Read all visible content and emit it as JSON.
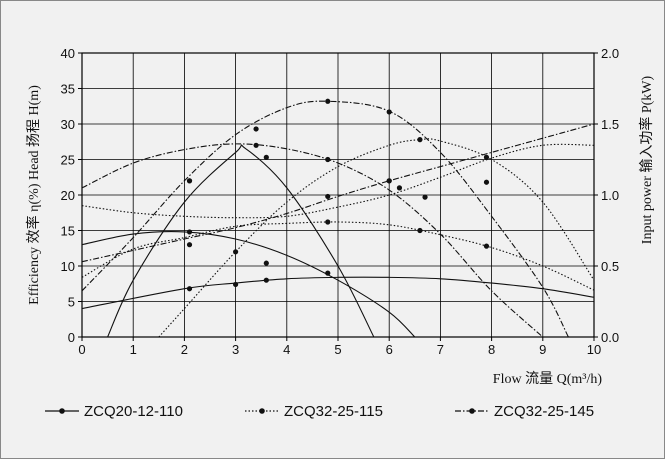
{
  "chart_data": {
    "type": "line",
    "xlabel": "Flow 流量 Q(m³/h)",
    "ylabel_left": "Efficiency 效率 η(%)    Head 扬程 H(m)",
    "ylabel_right": "Input power 输入功率 P(kW)",
    "xlim": [
      0,
      10
    ],
    "ylim_left": [
      0,
      40
    ],
    "ylim_right": [
      0,
      2.0
    ],
    "x_ticks": [
      "0",
      "1",
      "2",
      "3",
      "4",
      "5",
      "6",
      "7",
      "8",
      "9",
      "10"
    ],
    "y_left_ticks": [
      "0",
      "5",
      "10",
      "15",
      "20",
      "25",
      "30",
      "35",
      "40"
    ],
    "y_right_ticks": [
      "0.0",
      "0.5",
      "1.0",
      "1.5",
      "2.0"
    ],
    "grid": true,
    "legend_position": "bottom",
    "series": [
      {
        "name": "ZCQ20-12-110",
        "style": "solid",
        "curves": [
          {
            "kind": "head",
            "axis": "left",
            "points": [
              [
                0,
                13
              ],
              [
                1,
                14.5
              ],
              [
                2,
                14.8
              ],
              [
                3,
                13.8
              ],
              [
                4,
                11.5
              ],
              [
                5,
                8
              ],
              [
                6,
                3.5
              ],
              [
                6.5,
                0
              ]
            ],
            "markers": [
              [
                2.1,
                14.8
              ],
              [
                4.8,
                9
              ]
            ]
          },
          {
            "kind": "efficiency",
            "axis": "left",
            "points": [
              [
                0.5,
                0
              ],
              [
                1,
                8
              ],
              [
                2,
                19
              ],
              [
                3,
                26
              ],
              [
                3.2,
                26.5
              ],
              [
                4,
                21
              ],
              [
                5,
                10
              ],
              [
                5.7,
                0
              ]
            ],
            "markers": [
              [
                2.1,
                22
              ],
              [
                3.6,
                25.3
              ]
            ]
          },
          {
            "kind": "power",
            "axis": "right",
            "points": [
              [
                0,
                0.2
              ],
              [
                2,
                0.34
              ],
              [
                3,
                0.38
              ],
              [
                4,
                0.41
              ],
              [
                5,
                0.42
              ],
              [
                6,
                0.42
              ],
              [
                7,
                0.41
              ],
              [
                8,
                0.38
              ],
              [
                9,
                0.34
              ],
              [
                10,
                0.28
              ]
            ],
            "markers": [
              [
                2.1,
                0.34
              ],
              [
                3,
                0.37
              ],
              [
                3.6,
                0.4
              ]
            ]
          }
        ]
      },
      {
        "name": "ZCQ32-25-115",
        "style": "dotted",
        "curves": [
          {
            "kind": "head",
            "axis": "left",
            "points": [
              [
                0,
                18.5
              ],
              [
                1,
                17.5
              ],
              [
                2,
                17
              ],
              [
                3,
                16.8
              ],
              [
                4,
                17
              ],
              [
                5,
                18.3
              ],
              [
                6,
                20
              ],
              [
                7,
                22.5
              ],
              [
                8,
                25.2
              ],
              [
                9,
                27
              ],
              [
                10,
                27
              ]
            ],
            "markers": [
              [
                6.2,
                21
              ],
              [
                6.7,
                19.7
              ]
            ]
          },
          {
            "kind": "efficiency",
            "axis": "left",
            "points": [
              [
                1.5,
                0
              ],
              [
                2,
                4
              ],
              [
                3,
                12
              ],
              [
                4,
                19
              ],
              [
                5,
                24
              ],
              [
                6,
                27
              ],
              [
                6.6,
                27.8
              ],
              [
                7,
                27.6
              ],
              [
                8,
                25
              ],
              [
                9,
                19
              ],
              [
                10,
                8
              ]
            ],
            "markers": [
              [
                6.6,
                27.8
              ]
            ]
          },
          {
            "kind": "power",
            "axis": "right",
            "points": [
              [
                0,
                0.42
              ],
              [
                1,
                0.62
              ],
              [
                2,
                0.7
              ],
              [
                3,
                0.78
              ],
              [
                4,
                0.8
              ],
              [
                5,
                0.81
              ],
              [
                6,
                0.79
              ],
              [
                7,
                0.72
              ],
              [
                8,
                0.63
              ],
              [
                9,
                0.5
              ],
              [
                10,
                0.33
              ]
            ],
            "markers": [
              [
                2.1,
                0.65
              ],
              [
                3,
                0.6
              ],
              [
                3.6,
                0.52
              ],
              [
                4.8,
                0.81
              ],
              [
                6.6,
                0.75
              ],
              [
                7.9,
                0.64
              ]
            ]
          }
        ]
      },
      {
        "name": "ZCQ32-25-145",
        "style": "dash-dot",
        "curves": [
          {
            "kind": "head",
            "axis": "left",
            "points": [
              [
                0,
                21
              ],
              [
                1,
                24.5
              ],
              [
                2,
                26.4
              ],
              [
                3,
                27.2
              ],
              [
                4,
                26.5
              ],
              [
                5,
                24.5
              ],
              [
                6,
                20.7
              ],
              [
                7,
                14.5
              ],
              [
                8,
                6.5
              ],
              [
                9,
                0
              ]
            ],
            "markers": [
              [
                3.4,
                27
              ],
              [
                4.8,
                25
              ],
              [
                6,
                22
              ]
            ]
          },
          {
            "kind": "efficiency",
            "axis": "left",
            "points": [
              [
                0,
                6.5
              ],
              [
                1,
                14
              ],
              [
                2,
                22
              ],
              [
                3,
                28.5
              ],
              [
                4,
                32.3
              ],
              [
                4.8,
                33.2
              ],
              [
                6,
                31.8
              ],
              [
                7,
                26
              ],
              [
                8,
                17
              ],
              [
                9,
                7
              ],
              [
                9.5,
                0
              ]
            ],
            "markers": [
              [
                2.1,
                22
              ],
              [
                3.4,
                29.3
              ],
              [
                4.8,
                33.2
              ],
              [
                6,
                31.7
              ],
              [
                7.9,
                25.3
              ]
            ]
          },
          {
            "kind": "power",
            "axis": "right",
            "points": [
              [
                0,
                0.53
              ],
              [
                2,
                0.69
              ],
              [
                3,
                0.77
              ],
              [
                4,
                0.87
              ],
              [
                5,
                0.99
              ],
              [
                6,
                1.1
              ],
              [
                7,
                1.2
              ],
              [
                8,
                1.3
              ],
              [
                9,
                1.4
              ],
              [
                10,
                1.5
              ]
            ],
            "markers": [
              [
                4.8,
                0.99
              ],
              [
                6,
                1.1
              ],
              [
                7.9,
                1.09
              ]
            ]
          }
        ]
      }
    ]
  }
}
